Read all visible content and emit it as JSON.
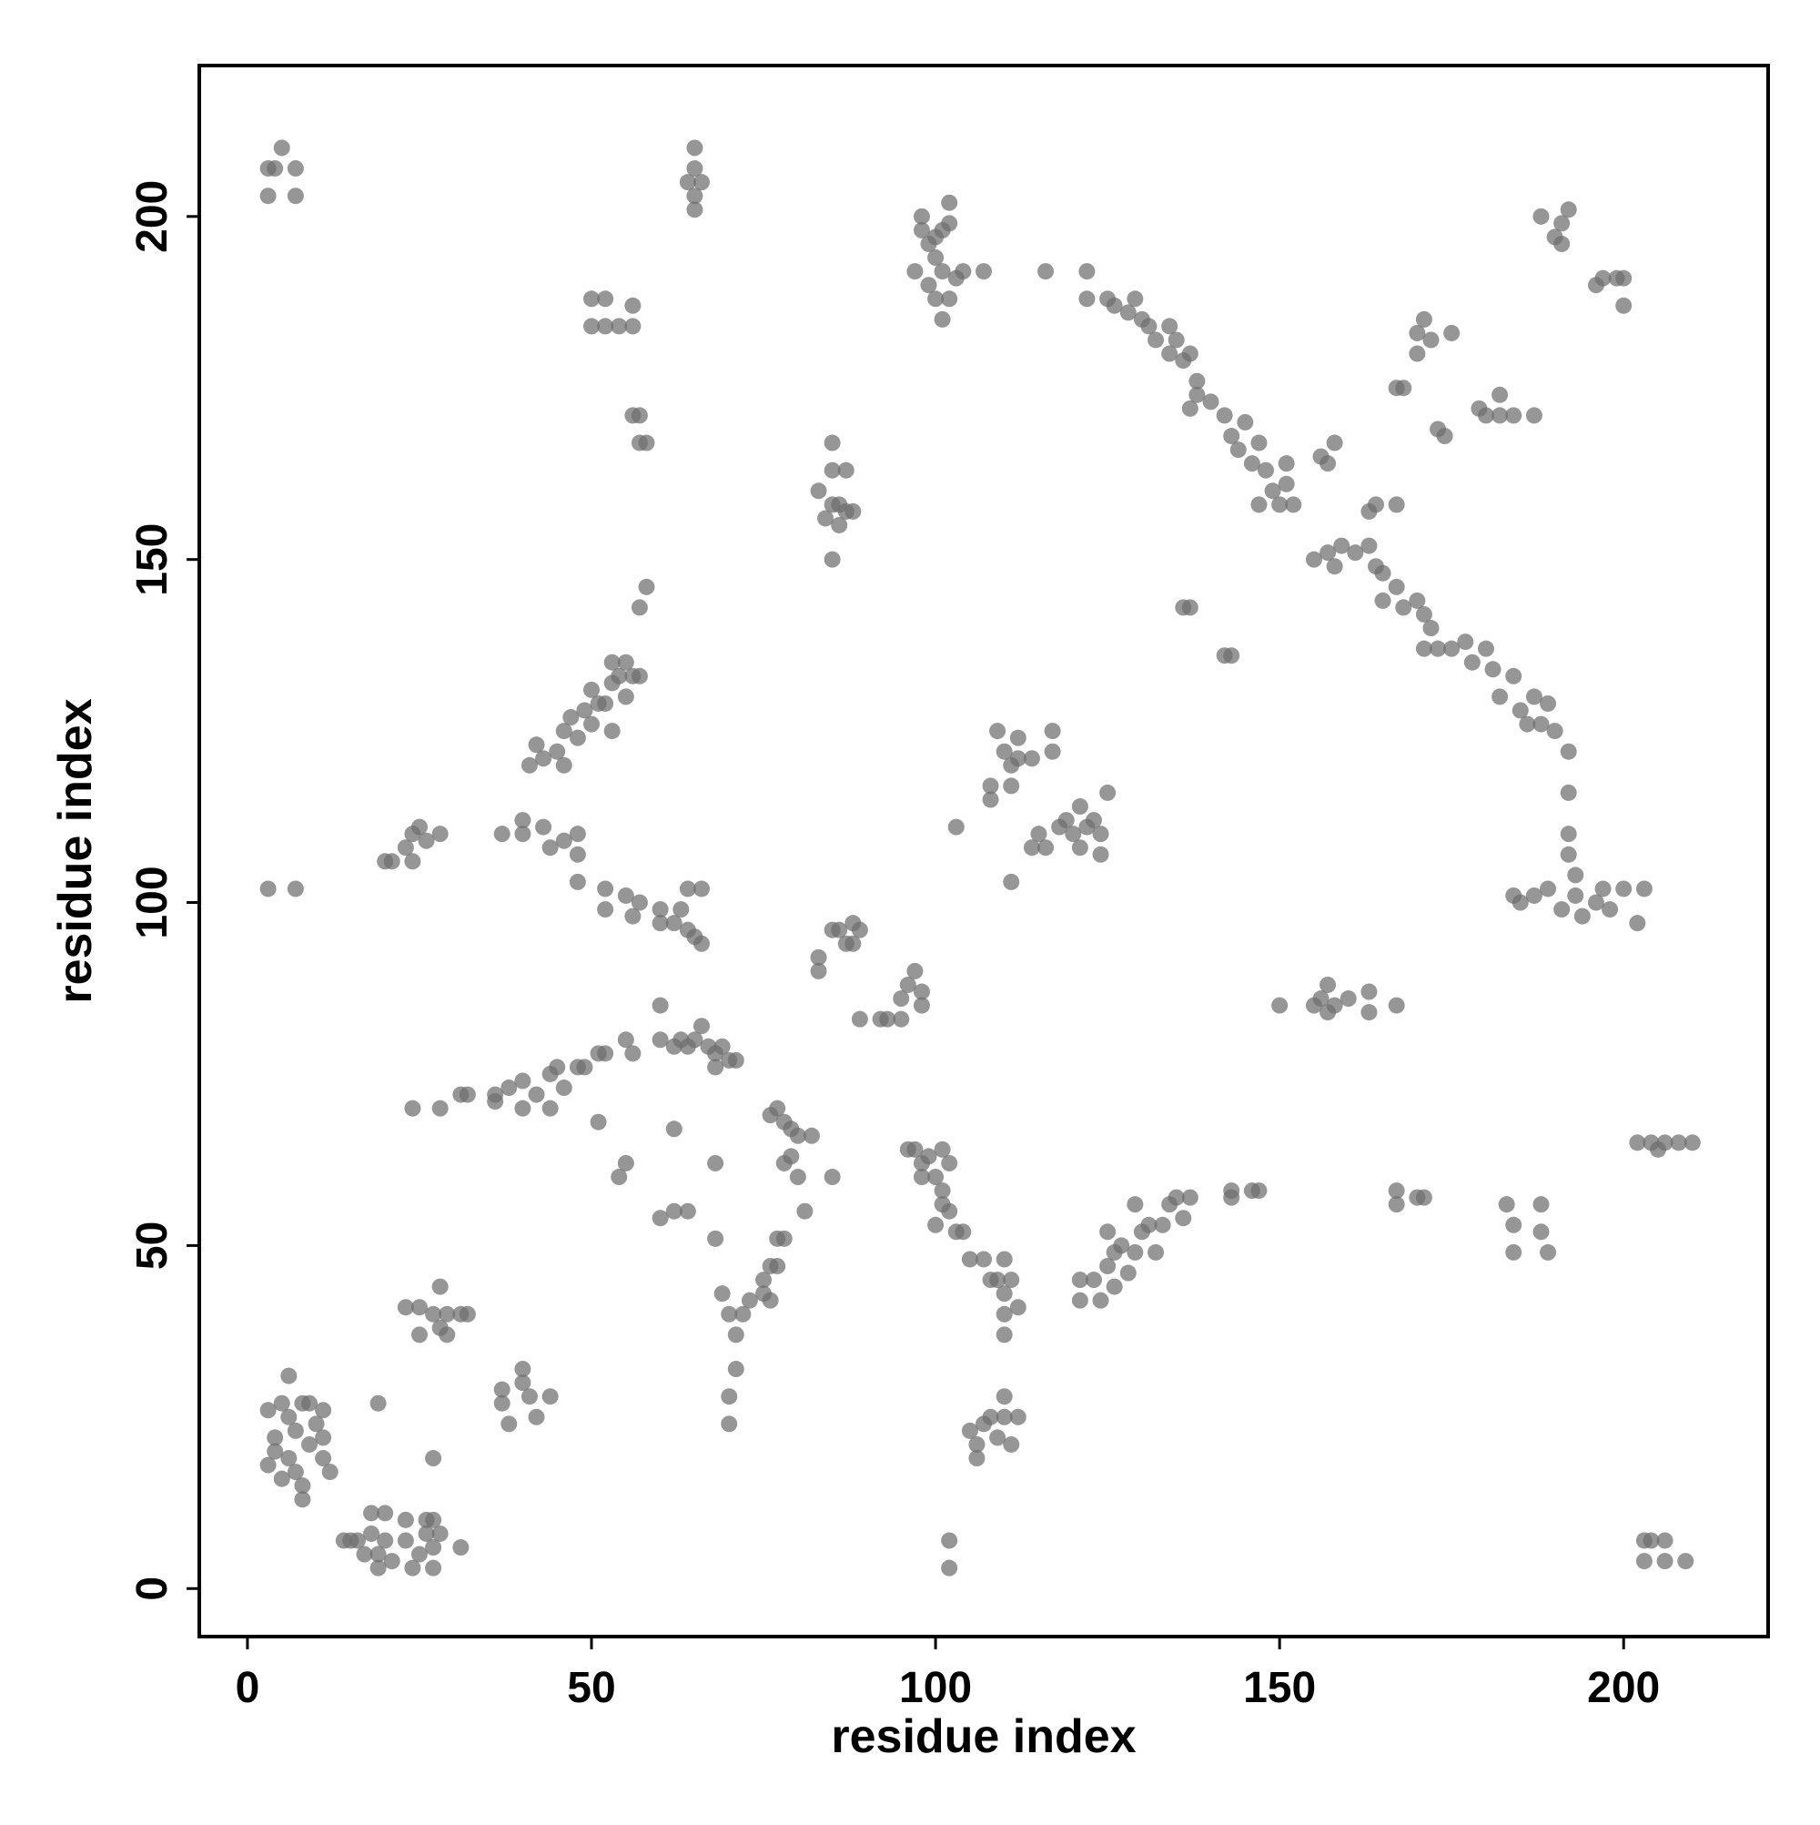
{
  "chart_data": {
    "type": "scatter",
    "xlabel": "residue index",
    "ylabel": "residue index",
    "xlim": [
      -7,
      221
    ],
    "ylim": [
      -7,
      222
    ],
    "xticks": [
      0,
      50,
      100,
      150,
      200
    ],
    "yticks": [
      0,
      50,
      100,
      150,
      200
    ],
    "color": "#6e6e6e",
    "opacity": 0.72,
    "x": [
      3,
      4,
      5,
      7,
      7,
      3,
      65,
      65,
      65,
      65,
      64,
      66,
      98,
      99,
      100,
      101,
      102,
      102,
      98,
      100,
      101,
      99,
      100,
      102,
      103,
      104,
      107,
      101,
      97,
      116,
      122,
      122,
      125,
      126,
      128,
      129,
      130,
      131,
      132,
      134,
      134,
      135,
      136,
      137,
      138,
      138,
      137,
      140,
      142,
      143,
      144,
      145,
      146,
      147,
      148,
      149,
      150,
      151,
      151,
      152,
      147,
      155,
      157,
      158,
      159,
      161,
      163,
      164,
      165,
      165,
      167,
      168,
      170,
      171,
      172,
      171,
      173,
      175,
      177,
      178,
      180,
      181,
      182,
      184,
      185,
      186,
      187,
      188,
      189,
      190,
      192,
      192,
      192,
      192,
      193,
      193,
      191,
      189,
      187,
      185,
      184,
      157,
      158,
      156,
      163,
      164,
      167,
      170,
      171,
      170,
      172,
      175,
      168,
      167,
      174,
      173,
      179,
      180,
      182,
      182,
      184,
      187,
      188,
      190,
      191,
      191,
      192,
      196,
      197,
      199,
      200,
      200,
      197,
      196,
      198,
      200,
      202,
      203,
      194,
      202,
      204,
      206,
      205,
      208,
      210,
      203,
      204,
      203,
      206,
      206,
      209,
      183,
      184,
      184,
      188,
      188,
      189,
      167,
      167,
      170,
      171,
      157,
      156,
      157,
      155,
      158,
      160,
      163,
      163,
      167,
      150,
      143,
      142,
      136,
      137,
      143,
      143,
      146,
      147,
      121,
      121,
      123,
      124,
      125,
      126,
      127,
      128,
      129,
      130,
      131,
      132,
      133,
      134,
      135,
      136,
      137,
      126,
      125,
      129,
      107,
      109,
      110,
      110,
      110,
      111,
      112,
      110,
      108,
      105,
      106,
      107,
      108,
      109,
      110,
      110,
      111,
      112,
      106,
      102,
      102,
      103,
      102,
      100,
      101,
      100,
      98,
      97,
      99,
      101,
      102,
      104,
      105,
      96,
      98,
      101,
      80,
      82,
      79,
      78,
      80,
      81,
      85,
      76,
      77,
      78,
      79,
      77,
      76,
      75,
      75,
      73,
      72,
      71,
      71,
      70,
      70,
      69,
      70,
      76,
      78,
      77,
      68,
      83,
      83,
      85,
      86,
      87,
      88,
      89,
      88,
      93,
      95,
      95,
      96,
      97,
      98,
      98,
      92,
      89,
      60,
      62,
      63,
      64,
      65,
      66,
      67,
      68,
      69,
      70,
      71,
      68,
      60,
      62,
      68,
      64,
      62,
      60,
      56,
      55,
      55,
      54,
      51,
      24,
      28,
      31,
      32,
      36,
      36,
      38,
      40,
      40,
      42,
      44,
      45,
      46,
      48,
      49,
      51,
      52,
      44,
      41,
      42,
      43,
      45,
      46,
      47,
      48,
      49,
      50,
      50,
      51,
      52,
      53,
      53,
      54,
      55,
      55,
      56,
      57,
      57,
      58,
      46,
      53,
      23,
      24,
      25,
      26,
      28,
      21,
      20,
      24,
      37,
      40,
      40,
      43,
      44,
      46,
      48,
      48,
      48,
      3,
      7,
      52,
      52,
      55,
      56,
      57,
      60,
      60,
      62,
      63,
      64,
      65,
      66,
      64,
      66,
      50,
      50,
      52,
      52,
      54,
      56,
      56,
      56,
      57,
      57,
      58,
      83,
      85,
      85,
      84,
      85,
      86,
      87,
      88,
      85,
      87,
      86,
      109,
      110,
      111,
      111,
      112,
      112,
      114,
      117,
      117,
      108,
      108,
      115,
      114,
      116,
      118,
      119,
      120,
      121,
      122,
      123,
      124,
      124,
      125,
      121,
      103,
      111,
      8,
      6,
      4,
      4,
      3,
      5,
      6,
      7,
      7,
      8,
      8,
      9,
      10,
      11,
      11,
      11,
      12,
      3,
      6,
      5,
      9,
      14,
      15,
      16,
      17,
      18,
      18,
      19,
      19,
      20,
      20,
      21,
      19,
      23,
      23,
      24,
      25,
      26,
      26,
      27,
      27,
      28,
      27,
      31,
      23,
      25,
      25,
      27,
      28,
      28,
      29,
      29,
      31,
      32,
      27,
      37,
      37,
      38,
      40,
      40,
      41,
      42,
      44
    ],
    "values": [
      203,
      207,
      210,
      207,
      203,
      207,
      201,
      203,
      207,
      210,
      205,
      205,
      198,
      196,
      197,
      198,
      199,
      202,
      200,
      194,
      192,
      190,
      188,
      188,
      191,
      192,
      192,
      185,
      192,
      192,
      192,
      188,
      188,
      187,
      186,
      188,
      185,
      184,
      182,
      184,
      180,
      182,
      179,
      180,
      176,
      174,
      172,
      173,
      171,
      168,
      166,
      170,
      164,
      167,
      163,
      160,
      158,
      164,
      161,
      158,
      158,
      150,
      151,
      149,
      152,
      151,
      152,
      149,
      148,
      144,
      146,
      143,
      144,
      142,
      140,
      137,
      137,
      137,
      138,
      135,
      137,
      134,
      130,
      133,
      128,
      126,
      130,
      126,
      129,
      125,
      122,
      116,
      110,
      107,
      104,
      101,
      99,
      102,
      101,
      100,
      101,
      164,
      167,
      165,
      157,
      158,
      158,
      183,
      185,
      180,
      182,
      183,
      175,
      175,
      168,
      169,
      172,
      171,
      174,
      171,
      171,
      171,
      200,
      197,
      199,
      196,
      201,
      190,
      191,
      191,
      191,
      187,
      102,
      100,
      99,
      102,
      97,
      102,
      98,
      65,
      65,
      65,
      64,
      65,
      65,
      7,
      7,
      4,
      7,
      4,
      4,
      56,
      53,
      49,
      56,
      52,
      49,
      58,
      56,
      57,
      57,
      88,
      86,
      84,
      85,
      85,
      86,
      87,
      84,
      85,
      85,
      136,
      136,
      143,
      143,
      57,
      58,
      58,
      58,
      42,
      45,
      45,
      42,
      47,
      49,
      50,
      46,
      49,
      52,
      53,
      49,
      53,
      56,
      57,
      54,
      57,
      44,
      52,
      56,
      48,
      45,
      43,
      48,
      40,
      45,
      41,
      37,
      45,
      23,
      21,
      24,
      25,
      22,
      25,
      28,
      21,
      25,
      19,
      7,
      3,
      52,
      55,
      53,
      56,
      60,
      62,
      64,
      63,
      64,
      62,
      52,
      48,
      64,
      60,
      58,
      66,
      66,
      63,
      62,
      60,
      55,
      60,
      69,
      70,
      68,
      67,
      51,
      47,
      45,
      43,
      42,
      40,
      37,
      32,
      28,
      24,
      43,
      40,
      42,
      51,
      47,
      51,
      90,
      92,
      96,
      96,
      94,
      97,
      96,
      94,
      83,
      83,
      86,
      88,
      90,
      87,
      85,
      83,
      83,
      80,
      79,
      80,
      79,
      80,
      82,
      79,
      78,
      79,
      77,
      77,
      76,
      85,
      67,
      62,
      55,
      55,
      54,
      78,
      80,
      62,
      60,
      68,
      70,
      70,
      72,
      72,
      72,
      71,
      73,
      74,
      70,
      72,
      75,
      76,
      73,
      76,
      76,
      78,
      78,
      70,
      120,
      123,
      121,
      122,
      125,
      127,
      124,
      128,
      126,
      131,
      129,
      129,
      132,
      135,
      133,
      135,
      130,
      133,
      133,
      143,
      146,
      120,
      125,
      108,
      110,
      111,
      109,
      110,
      106,
      106,
      106,
      110,
      110,
      112,
      111,
      108,
      109,
      107,
      110,
      103,
      102,
      102,
      99,
      102,
      101,
      98,
      100,
      97,
      99,
      97,
      99,
      96,
      95,
      94,
      102,
      102,
      188,
      184,
      188,
      184,
      184,
      187,
      184,
      171,
      171,
      167,
      167,
      160,
      163,
      167,
      156,
      158,
      158,
      157,
      157,
      150,
      163,
      155,
      125,
      122,
      120,
      117,
      124,
      121,
      121,
      125,
      122,
      117,
      115,
      110,
      108,
      108,
      111,
      112,
      110,
      114,
      111,
      112,
      110,
      107,
      116,
      108,
      111,
      103,
      27,
      25,
      22,
      20,
      18,
      16,
      19,
      23,
      17,
      15,
      13,
      21,
      24,
      26,
      22,
      19,
      17,
      26,
      31,
      27,
      27,
      7,
      7,
      7,
      5,
      11,
      8,
      5,
      3,
      11,
      7,
      4,
      27,
      10,
      7,
      3,
      5,
      10,
      8,
      3,
      6,
      8,
      10,
      6,
      41,
      41,
      37,
      40,
      38,
      44,
      40,
      37,
      40,
      40,
      19,
      27,
      29,
      24,
      32,
      30,
      28,
      25,
      28
    ]
  }
}
